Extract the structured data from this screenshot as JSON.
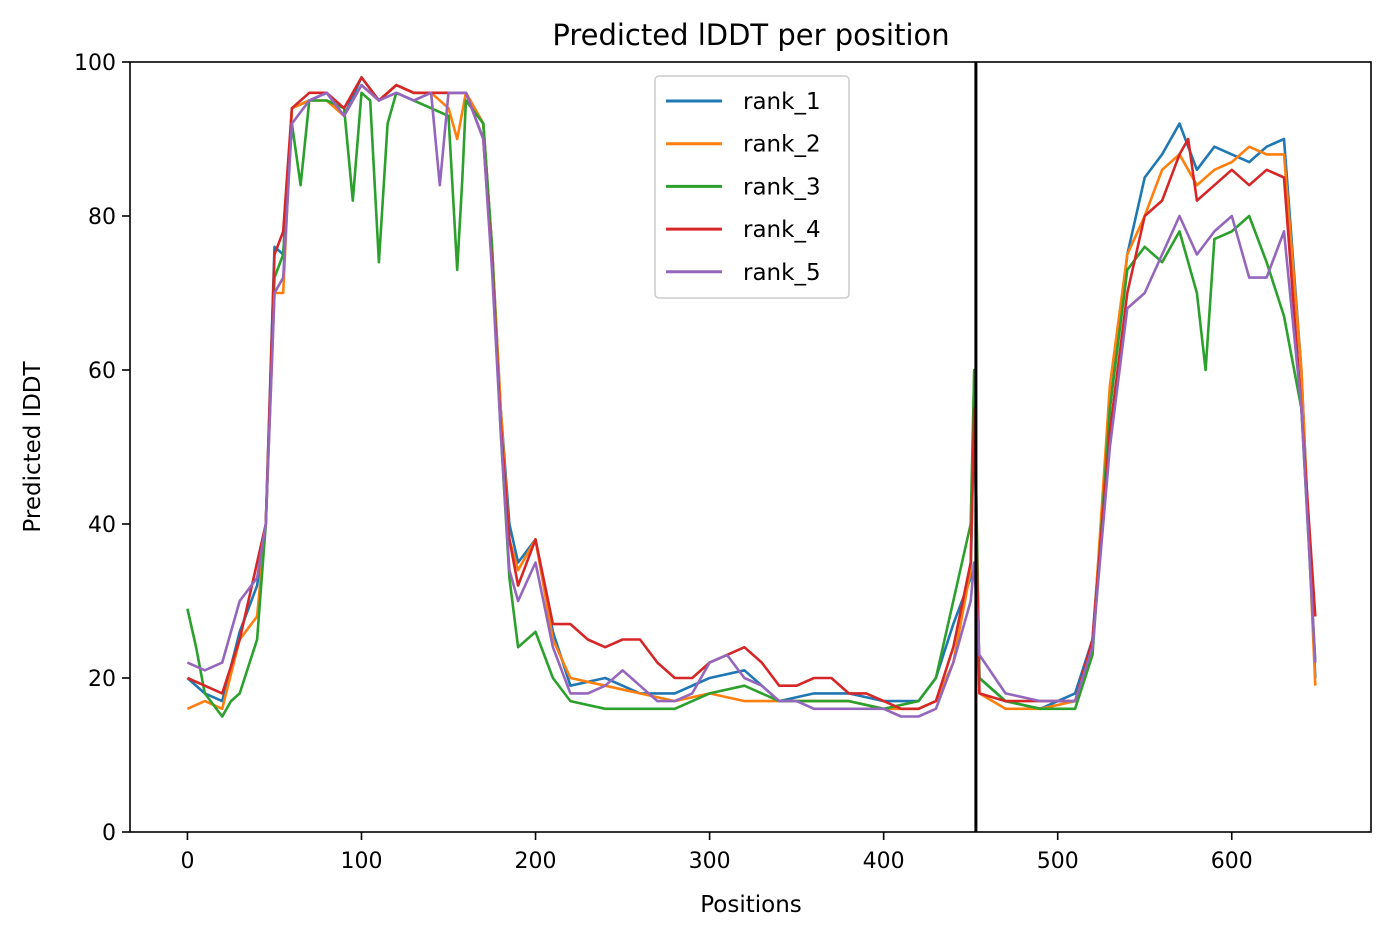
{
  "chart_data": {
    "type": "line",
    "title": "Predicted lDDT per position",
    "xlabel": "Positions",
    "ylabel": "Predicted lDDT",
    "xlim": [
      -33,
      680
    ],
    "ylim": [
      0,
      100
    ],
    "xticks": [
      0,
      100,
      200,
      300,
      400,
      500,
      600
    ],
    "yticks": [
      0,
      20,
      40,
      60,
      80,
      100
    ],
    "grid": false,
    "legend_position": "upper center",
    "vline": 453,
    "series": [
      {
        "name": "rank_1",
        "color": "#1f77b4",
        "x": [
          0,
          10,
          20,
          30,
          40,
          45,
          50,
          55,
          60,
          70,
          80,
          90,
          100,
          110,
          120,
          130,
          140,
          150,
          160,
          170,
          175,
          180,
          185,
          190,
          200,
          210,
          220,
          240,
          260,
          280,
          300,
          320,
          340,
          360,
          380,
          400,
          420,
          430,
          440,
          450,
          452,
          455,
          470,
          490,
          510,
          520,
          530,
          540,
          550,
          560,
          570,
          580,
          590,
          600,
          610,
          620,
          630,
          640,
          648
        ],
        "y": [
          20,
          18,
          17,
          26,
          32,
          40,
          76,
          75,
          94,
          95,
          96,
          93,
          98,
          95,
          97,
          96,
          96,
          96,
          96,
          92,
          76,
          55,
          40,
          35,
          38,
          26,
          19,
          20,
          18,
          18,
          20,
          21,
          17,
          18,
          18,
          17,
          17,
          20,
          27,
          33,
          55,
          20,
          17,
          16,
          18,
          25,
          55,
          75,
          85,
          88,
          92,
          86,
          89,
          88,
          87,
          89,
          90,
          60,
          20
        ]
      },
      {
        "name": "rank_2",
        "color": "#ff7f0e",
        "x": [
          0,
          10,
          20,
          30,
          40,
          45,
          50,
          55,
          60,
          70,
          80,
          90,
          100,
          110,
          120,
          130,
          140,
          150,
          155,
          160,
          170,
          175,
          180,
          185,
          190,
          200,
          210,
          220,
          240,
          260,
          280,
          300,
          320,
          340,
          360,
          380,
          400,
          420,
          430,
          440,
          450,
          452,
          455,
          470,
          490,
          510,
          520,
          530,
          540,
          550,
          560,
          570,
          580,
          590,
          600,
          610,
          620,
          630,
          640,
          648
        ],
        "y": [
          16,
          17,
          16,
          25,
          28,
          40,
          70,
          70,
          94,
          95,
          95,
          93,
          97,
          95,
          97,
          96,
          96,
          94,
          90,
          96,
          92,
          76,
          55,
          38,
          34,
          38,
          25,
          20,
          19,
          18,
          17,
          18,
          17,
          17,
          17,
          17,
          16,
          16,
          17,
          22,
          34,
          60,
          18,
          16,
          16,
          17,
          24,
          58,
          75,
          80,
          86,
          88,
          84,
          86,
          87,
          89,
          88,
          88,
          60,
          19
        ]
      },
      {
        "name": "rank_3",
        "color": "#2ca02c",
        "x": [
          0,
          5,
          10,
          20,
          25,
          30,
          40,
          45,
          50,
          55,
          60,
          65,
          70,
          80,
          90,
          95,
          100,
          105,
          110,
          115,
          120,
          130,
          140,
          150,
          155,
          158,
          160,
          170,
          175,
          180,
          185,
          190,
          200,
          210,
          220,
          240,
          260,
          280,
          300,
          320,
          340,
          360,
          380,
          400,
          420,
          430,
          440,
          450,
          452,
          455,
          470,
          490,
          510,
          520,
          530,
          540,
          550,
          560,
          570,
          580,
          585,
          590,
          600,
          610,
          620,
          630,
          640,
          648
        ],
        "y": [
          29,
          24,
          18,
          15,
          17,
          18,
          25,
          40,
          72,
          75,
          92,
          84,
          95,
          95,
          94,
          82,
          96,
          95,
          74,
          92,
          96,
          95,
          94,
          93,
          73,
          85,
          95,
          92,
          76,
          52,
          33,
          24,
          26,
          20,
          17,
          16,
          16,
          16,
          18,
          19,
          17,
          17,
          17,
          16,
          17,
          20,
          30,
          40,
          60,
          20,
          17,
          16,
          16,
          23,
          55,
          73,
          76,
          74,
          78,
          70,
          60,
          77,
          78,
          80,
          74,
          67,
          55,
          22
        ]
      },
      {
        "name": "rank_4",
        "color": "#d62728",
        "x": [
          0,
          10,
          20,
          30,
          40,
          45,
          50,
          55,
          60,
          70,
          80,
          90,
          100,
          110,
          120,
          130,
          140,
          150,
          160,
          170,
          175,
          180,
          185,
          190,
          200,
          210,
          220,
          230,
          240,
          250,
          260,
          270,
          280,
          290,
          300,
          310,
          320,
          330,
          340,
          350,
          360,
          370,
          380,
          390,
          400,
          410,
          420,
          430,
          440,
          450,
          452,
          455,
          470,
          490,
          510,
          520,
          530,
          540,
          550,
          560,
          570,
          575,
          580,
          590,
          600,
          610,
          620,
          630,
          640,
          648
        ],
        "y": [
          20,
          19,
          18,
          25,
          35,
          40,
          75,
          78,
          94,
          96,
          96,
          94,
          98,
          95,
          97,
          96,
          96,
          96,
          96,
          90,
          74,
          53,
          38,
          32,
          38,
          27,
          27,
          25,
          24,
          25,
          25,
          22,
          20,
          20,
          22,
          23,
          24,
          22,
          19,
          19,
          20,
          20,
          18,
          18,
          17,
          16,
          16,
          17,
          24,
          35,
          55,
          18,
          17,
          17,
          17,
          25,
          52,
          70,
          80,
          82,
          88,
          90,
          82,
          84,
          86,
          84,
          86,
          85,
          55,
          28
        ]
      },
      {
        "name": "rank_5",
        "color": "#9467bd",
        "x": [
          0,
          10,
          20,
          30,
          40,
          45,
          50,
          55,
          60,
          70,
          80,
          90,
          100,
          110,
          120,
          130,
          140,
          145,
          150,
          160,
          170,
          175,
          180,
          185,
          190,
          200,
          210,
          220,
          230,
          240,
          250,
          260,
          270,
          280,
          290,
          300,
          310,
          320,
          330,
          340,
          350,
          360,
          370,
          380,
          390,
          400,
          410,
          420,
          430,
          440,
          450,
          452,
          455,
          470,
          490,
          510,
          520,
          530,
          540,
          550,
          560,
          570,
          580,
          590,
          600,
          610,
          620,
          630,
          640,
          648
        ],
        "y": [
          22,
          21,
          22,
          30,
          33,
          40,
          70,
          72,
          92,
          95,
          96,
          93,
          97,
          95,
          96,
          95,
          96,
          84,
          96,
          96,
          90,
          73,
          52,
          34,
          30,
          35,
          24,
          18,
          18,
          19,
          21,
          19,
          17,
          17,
          18,
          22,
          23,
          20,
          19,
          17,
          17,
          16,
          16,
          16,
          16,
          16,
          15,
          15,
          16,
          22,
          30,
          35,
          23,
          18,
          17,
          17,
          24,
          50,
          68,
          70,
          75,
          80,
          75,
          78,
          80,
          72,
          72,
          78,
          55,
          22
        ]
      }
    ]
  }
}
